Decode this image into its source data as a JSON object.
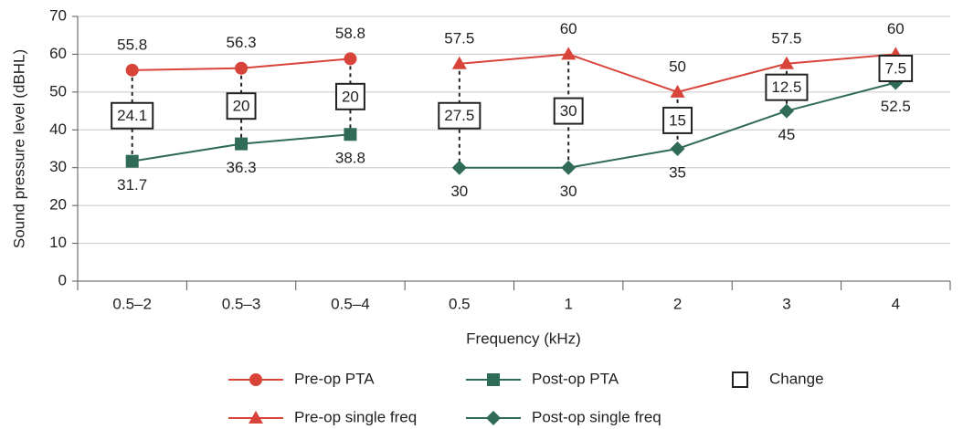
{
  "chart_data": {
    "type": "line",
    "x_label": "Frequency (kHz)",
    "y_label": "Sound pressure level (dBHL)",
    "categories": [
      "0.5–2",
      "0.5–3",
      "0.5–4",
      "0.5",
      "1",
      "2",
      "3",
      "4"
    ],
    "ylim": [
      0,
      70
    ],
    "yticks": [
      0,
      10,
      20,
      30,
      40,
      50,
      60,
      70
    ],
    "grid": true,
    "series": [
      {
        "name": "Pre-op PTA",
        "color": "#d8443a",
        "marker": "circle",
        "role": "pre",
        "values": [
          55.8,
          56.3,
          58.8,
          null,
          null,
          null,
          null,
          null
        ]
      },
      {
        "name": "Post-op PTA",
        "color": "#2f6b57",
        "marker": "square",
        "role": "post",
        "values": [
          31.7,
          36.3,
          38.8,
          null,
          null,
          null,
          null,
          null
        ]
      },
      {
        "name": "Change",
        "color": "#222222",
        "marker": "box",
        "role": "change",
        "values": [
          24.1,
          20,
          20,
          27.5,
          30,
          15,
          12.5,
          7.5
        ]
      },
      {
        "name": "Pre-op single freq",
        "color": "#d8443a",
        "marker": "triangle",
        "role": "pre",
        "values": [
          null,
          null,
          null,
          57.5,
          60,
          50,
          57.5,
          60
        ]
      },
      {
        "name": "Post-op single freq",
        "color": "#2f6b57",
        "marker": "diamond",
        "role": "post",
        "values": [
          null,
          null,
          null,
          30,
          30,
          35,
          45,
          52.5
        ]
      }
    ]
  }
}
